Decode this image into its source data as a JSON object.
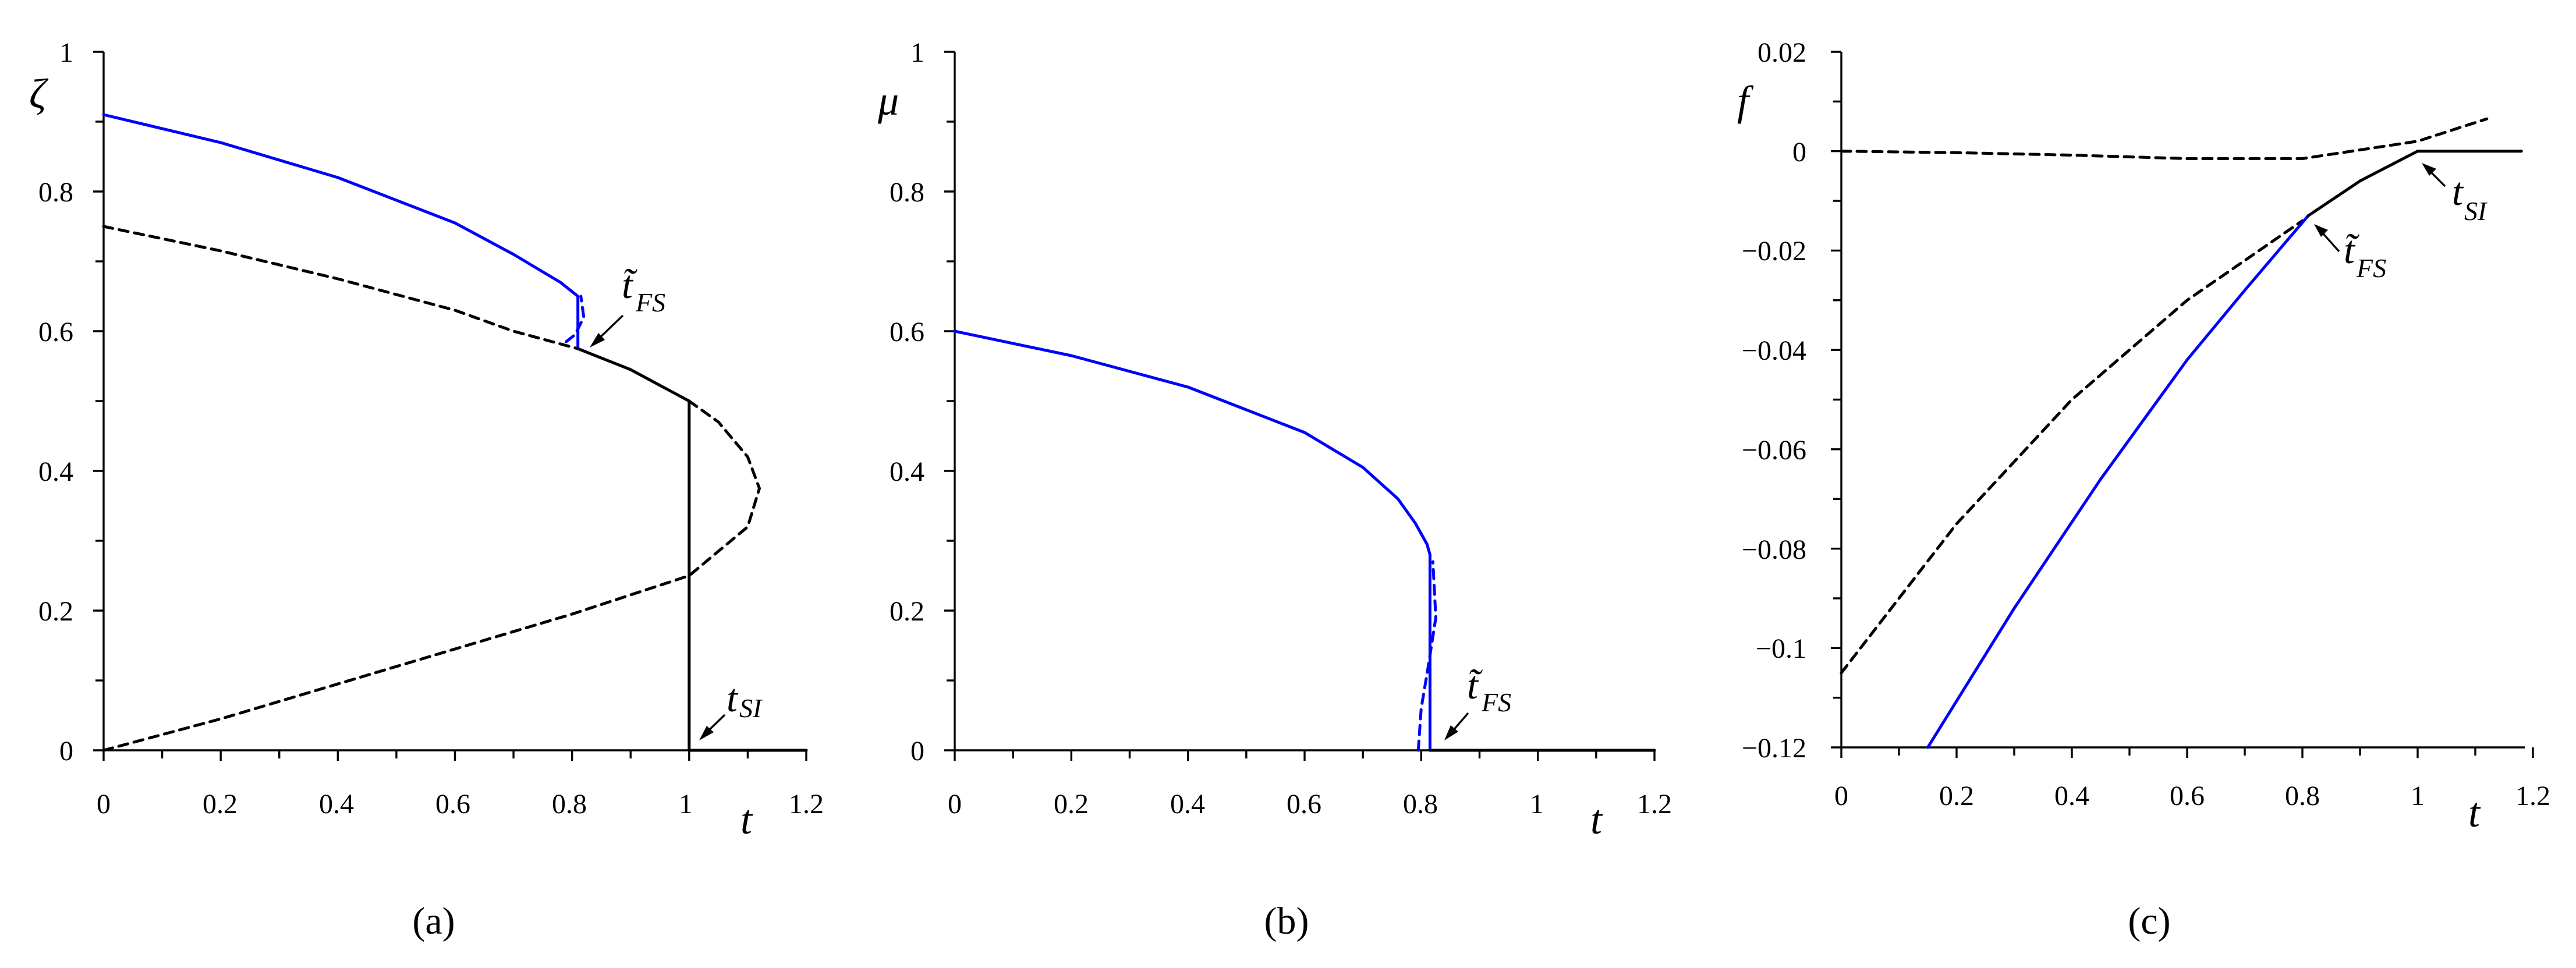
{
  "figure": {
    "panels": [
      {
        "id": "a",
        "caption": "(a)",
        "ylabel": "ζ",
        "xlabel": "t",
        "xlim": [
          0,
          1.2
        ],
        "ylim": [
          0,
          1
        ],
        "xticks": [
          "0",
          "0.2",
          "0.4",
          "0.6",
          "0.8",
          "1",
          "1.2"
        ],
        "yticks": [
          "0",
          "0.2",
          "0.4",
          "0.6",
          "0.8",
          "1"
        ],
        "annotations": [
          {
            "main": "t̃",
            "sub": "FS"
          },
          {
            "main": "t",
            "sub": "SI"
          }
        ]
      },
      {
        "id": "b",
        "caption": "(b)",
        "ylabel": "μ",
        "xlabel": "t",
        "xlim": [
          0,
          1.2
        ],
        "ylim": [
          0,
          1
        ],
        "xticks": [
          "0",
          "0.2",
          "0.4",
          "0.6",
          "0.8",
          "1",
          "1.2"
        ],
        "yticks": [
          "0",
          "0.2",
          "0.4",
          "0.6",
          "0.8",
          "1"
        ],
        "annotations": [
          {
            "main": "t̃",
            "sub": "FS"
          }
        ]
      },
      {
        "id": "c",
        "caption": "(c)",
        "ylabel": "f",
        "xlabel": "t",
        "xlim": [
          0,
          1.2
        ],
        "ylim": [
          -0.12,
          0.02
        ],
        "xticks": [
          "0",
          "0.2",
          "0.4",
          "0.6",
          "0.8",
          "1",
          "1.2"
        ],
        "yticks": [
          "0.02",
          "0",
          "−0.02",
          "−0.04",
          "−0.06",
          "−0.08",
          "−0.1",
          "−0.12"
        ],
        "annotations": [
          {
            "main": "t̃",
            "sub": "FS"
          },
          {
            "main": "t",
            "sub": "SI"
          }
        ]
      }
    ]
  },
  "colors": {
    "blue": "#0000ff",
    "black": "#000000"
  },
  "chart_data": [
    {
      "type": "line",
      "panel": "a",
      "xlim": [
        0,
        1.2
      ],
      "ylim": [
        0,
        1
      ],
      "grid": false,
      "series": [
        {
          "color": "blue",
          "style": "solid",
          "x": [
            0,
            0.2,
            0.4,
            0.6,
            0.7,
            0.78,
            0.81
          ],
          "y": [
            0.91,
            0.87,
            0.82,
            0.755,
            0.71,
            0.67,
            0.65
          ]
        },
        {
          "color": "blue",
          "style": "solid",
          "x": [
            0.81,
            0.81
          ],
          "y": [
            0.65,
            0.575
          ]
        },
        {
          "color": "blue",
          "style": "dashed",
          "x": [
            0.79,
            0.805,
            0.82,
            0.815
          ],
          "y": [
            0.585,
            0.595,
            0.62,
            0.65
          ]
        },
        {
          "color": "black",
          "style": "dashed",
          "x": [
            0,
            0.2,
            0.4,
            0.6,
            0.7,
            0.81
          ],
          "y": [
            0.75,
            0.715,
            0.675,
            0.63,
            0.6,
            0.575
          ]
        },
        {
          "color": "black",
          "style": "solid",
          "x": [
            0.81,
            0.9,
            1.0
          ],
          "y": [
            0.575,
            0.545,
            0.5
          ]
        },
        {
          "color": "black",
          "style": "dashed",
          "x": [
            1.0,
            1.05,
            1.1,
            1.12,
            1.1,
            1.05,
            1.0
          ],
          "y": [
            0.5,
            0.47,
            0.42,
            0.375,
            0.32,
            0.285,
            0.25
          ]
        },
        {
          "color": "black",
          "style": "dashed",
          "x": [
            0,
            0.2,
            0.4,
            0.6,
            0.8,
            1.0
          ],
          "y": [
            0,
            0.045,
            0.095,
            0.145,
            0.195,
            0.25
          ]
        },
        {
          "color": "black",
          "style": "solid",
          "x": [
            1.0,
            1.0
          ],
          "y": [
            0.5,
            0
          ]
        },
        {
          "color": "black",
          "style": "solid",
          "x": [
            1.0,
            1.2
          ],
          "y": [
            0,
            0
          ]
        }
      ]
    },
    {
      "type": "line",
      "panel": "b",
      "xlim": [
        0,
        1.2
      ],
      "ylim": [
        0,
        1
      ],
      "grid": false,
      "series": [
        {
          "color": "blue",
          "style": "solid",
          "x": [
            0,
            0.2,
            0.4,
            0.6,
            0.7,
            0.76,
            0.79,
            0.81,
            0.815
          ],
          "y": [
            0.6,
            0.565,
            0.52,
            0.455,
            0.405,
            0.36,
            0.325,
            0.295,
            0.28
          ]
        },
        {
          "color": "blue",
          "style": "solid",
          "x": [
            0.815,
            0.815
          ],
          "y": [
            0.28,
            0
          ]
        },
        {
          "color": "blue",
          "style": "dashed",
          "x": [
            0.795,
            0.8,
            0.812,
            0.825,
            0.82
          ],
          "y": [
            0,
            0.06,
            0.12,
            0.19,
            0.27
          ]
        },
        {
          "color": "black",
          "style": "solid",
          "x": [
            0.815,
            1.2
          ],
          "y": [
            0,
            0
          ]
        }
      ]
    },
    {
      "type": "line",
      "panel": "c",
      "xlim": [
        0,
        1.2
      ],
      "ylim": [
        -0.12,
        0.02
      ],
      "grid": false,
      "series": [
        {
          "color": "black",
          "style": "dashed",
          "x": [
            0,
            0.2,
            0.4,
            0.6,
            0.8,
            1.0,
            1.12
          ],
          "y": [
            0,
            -0.0003,
            -0.0008,
            -0.0015,
            -0.0015,
            0.002,
            0.0065
          ]
        },
        {
          "color": "black",
          "style": "dashed",
          "x": [
            0,
            0.2,
            0.4,
            0.6,
            0.8
          ],
          "y": [
            -0.105,
            -0.075,
            -0.05,
            -0.03,
            -0.014
          ]
        },
        {
          "color": "blue",
          "style": "solid",
          "x": [
            0.15,
            0.3,
            0.45,
            0.6,
            0.7,
            0.81
          ],
          "y": [
            -0.12,
            -0.092,
            -0.066,
            -0.042,
            -0.028,
            -0.013
          ]
        },
        {
          "color": "black",
          "style": "solid",
          "x": [
            0.81,
            0.9,
            1.0
          ],
          "y": [
            -0.013,
            -0.006,
            0
          ]
        },
        {
          "color": "black",
          "style": "solid",
          "x": [
            1.0,
            1.18
          ],
          "y": [
            0,
            0
          ]
        }
      ]
    }
  ]
}
